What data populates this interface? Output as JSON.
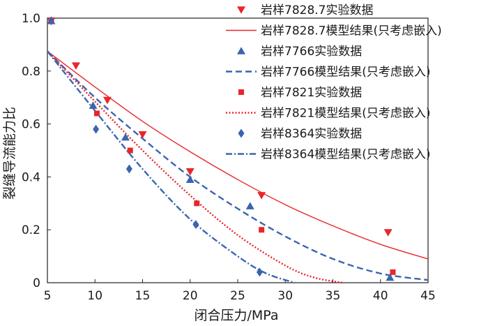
{
  "chart_data": {
    "type": "scatter",
    "title": "",
    "xlabel": "闭合压力/MPa",
    "ylabel": "裂缝导流能力比",
    "xlim": [
      5,
      45
    ],
    "ylim": [
      0,
      1.0
    ],
    "x_ticks": [
      "5",
      "10",
      "15",
      "20",
      "25",
      "30",
      "35",
      "40",
      "45"
    ],
    "y_ticks": [
      "0",
      "0.2",
      "0.4",
      "0.6",
      "0.8",
      "1.0"
    ],
    "legend_position": "top-right",
    "series": [
      {
        "name": "岩样7828.7实验数据",
        "kind": "points",
        "marker": "triangle-down",
        "color": "#e8262a",
        "points": [
          [
            5.4,
            0.99
          ],
          [
            8.0,
            0.82
          ],
          [
            11.3,
            0.69
          ],
          [
            15.0,
            0.56
          ],
          [
            20.0,
            0.42
          ],
          [
            27.5,
            0.33
          ],
          [
            40.8,
            0.19
          ]
        ]
      },
      {
        "name": "岩样7828.7模型结果(只考虑嵌入)",
        "kind": "line",
        "dash": "solid",
        "color": "#e8262a",
        "points": [
          [
            5,
            0.875
          ],
          [
            10,
            0.74
          ],
          [
            15,
            0.61
          ],
          [
            20,
            0.495
          ],
          [
            25,
            0.39
          ],
          [
            30,
            0.295
          ],
          [
            35,
            0.215
          ],
          [
            40,
            0.145
          ],
          [
            45,
            0.09
          ]
        ]
      },
      {
        "name": "岩样7766实验数据",
        "kind": "points",
        "marker": "triangle-up",
        "color": "#3a64b0",
        "points": [
          [
            5.4,
            0.99
          ],
          [
            9.8,
            0.67
          ],
          [
            13.2,
            0.55
          ],
          [
            20.0,
            0.39
          ],
          [
            26.3,
            0.29
          ],
          [
            41.0,
            0.02
          ]
        ]
      },
      {
        "name": "岩样7766模型结果(只考虑嵌入)",
        "kind": "line",
        "dash": "dashed",
        "color": "#3a64b0",
        "points": [
          [
            5,
            0.875
          ],
          [
            10,
            0.7
          ],
          [
            15,
            0.545
          ],
          [
            20,
            0.4
          ],
          [
            25,
            0.28
          ],
          [
            30,
            0.175
          ],
          [
            35,
            0.09
          ],
          [
            40,
            0.035
          ],
          [
            45,
            0.01
          ]
        ]
      },
      {
        "name": "岩样7821实验数据",
        "kind": "points",
        "marker": "square",
        "color": "#e8262a",
        "points": [
          [
            5.4,
            0.99
          ],
          [
            10.2,
            0.64
          ],
          [
            13.7,
            0.5
          ],
          [
            20.7,
            0.3
          ],
          [
            27.5,
            0.2
          ],
          [
            41.3,
            0.04
          ]
        ]
      },
      {
        "name": "岩样7821模型结果(只考虑嵌入)",
        "kind": "line",
        "dash": "dotted",
        "color": "#e8262a",
        "points": [
          [
            5,
            0.875
          ],
          [
            10,
            0.685
          ],
          [
            15,
            0.5
          ],
          [
            20,
            0.33
          ],
          [
            25,
            0.18
          ],
          [
            30,
            0.065
          ],
          [
            33,
            0.02
          ],
          [
            36,
            0.0
          ]
        ]
      },
      {
        "name": "岩样8364实验数据",
        "kind": "points",
        "marker": "diamond",
        "color": "#3a64b0",
        "points": [
          [
            5.4,
            0.99
          ],
          [
            10.1,
            0.58
          ],
          [
            13.6,
            0.43
          ],
          [
            20.6,
            0.22
          ],
          [
            27.3,
            0.04
          ]
        ]
      },
      {
        "name": "岩样8364模型结果(只考虑嵌入)",
        "kind": "line",
        "dash": "dashdot",
        "color": "#3a64b0",
        "points": [
          [
            5,
            0.875
          ],
          [
            10,
            0.65
          ],
          [
            15,
            0.43
          ],
          [
            20,
            0.24
          ],
          [
            25,
            0.1
          ],
          [
            28,
            0.035
          ],
          [
            31,
            0.0
          ]
        ]
      }
    ]
  }
}
